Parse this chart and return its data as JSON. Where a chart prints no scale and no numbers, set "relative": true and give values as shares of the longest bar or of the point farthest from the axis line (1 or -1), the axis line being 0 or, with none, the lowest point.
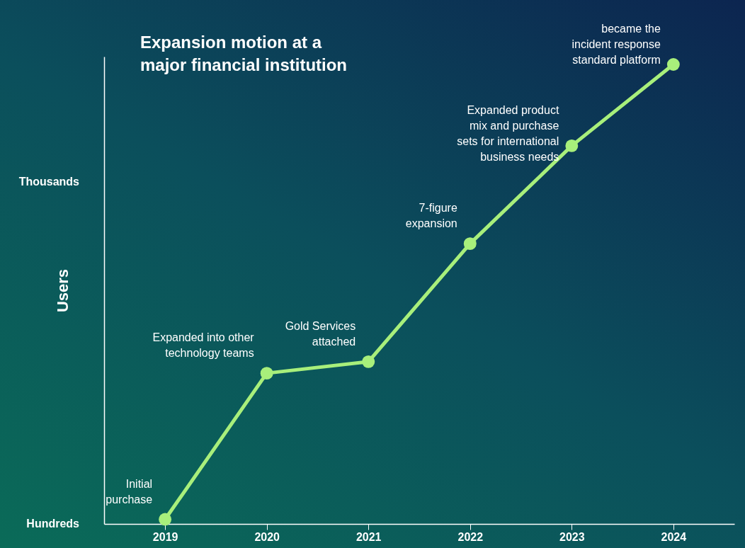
{
  "chart_data": {
    "type": "line",
    "title": "Expansion motion at a\nmajor financial institution",
    "ylabel": "Users",
    "categories": [
      "2019",
      "2020",
      "2021",
      "2022",
      "2023",
      "2024"
    ],
    "relative": true,
    "series": [
      {
        "color": "#a8ef7b",
        "values": [
          0.01,
          0.328,
          0.353,
          0.61,
          0.823,
          1
        ]
      }
    ],
    "marker": "circle",
    "annotations": [
      "Hundreds",
      "Thousands",
      {
        "text": "Initial\npurchase",
        "x": "2019",
        "y": 0.01
      },
      {
        "text": "Expanded into other\ntechnology teams",
        "x": "2020",
        "y": 0.328
      },
      {
        "text": "Gold Services\nattached",
        "x": "2021",
        "y": 0.353
      },
      {
        "text": "7-figure\nexpansion",
        "x": "2022",
        "y": 0.61
      },
      {
        "text": "Expanded product\nmix and purchase\nsets for international\nbusiness needs",
        "x": "2023",
        "y": 0.823
      },
      {
        "text": "became the\nincident response\nstandard platform",
        "x": "2024",
        "y": 1
      }
    ]
  }
}
